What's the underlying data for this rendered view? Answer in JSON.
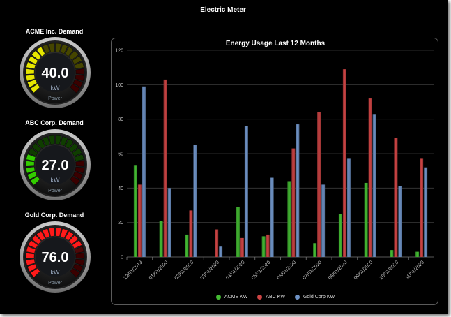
{
  "app": {
    "title": "Electric Meter"
  },
  "gauges": [
    {
      "title": "ACME Inc. Demand",
      "value": "40.0",
      "unit": "kW",
      "caption": "Power",
      "level": 0.4,
      "color": "#e6e600"
    },
    {
      "title": "ABC Corp. Demand",
      "value": "27.0",
      "unit": "kW",
      "caption": "Power",
      "level": 0.27,
      "color": "#33cc00"
    },
    {
      "title": "Gold Corp. Demand",
      "value": "76.0",
      "unit": "kW",
      "caption": "Power",
      "level": 0.76,
      "color": "#ff1a1a"
    }
  ],
  "chart_data": {
    "type": "bar",
    "title": "Energy Usage Last 12 Months",
    "xlabel": "",
    "ylabel": "",
    "ylim": [
      0,
      120
    ],
    "yticks": [
      0,
      20,
      40,
      60,
      80,
      100,
      120
    ],
    "grid": true,
    "legend_position": "bottom",
    "categories": [
      "12/01/2019",
      "01/01/2020",
      "02/01/2020",
      "03/01/2020",
      "04/01/2020",
      "05/01/2020",
      "06/01/2020",
      "07/01/2020",
      "08/01/2020",
      "09/01/2020",
      "10/01/2020",
      "11/01/2020"
    ],
    "series": [
      {
        "name": "ACME KW",
        "color": "#44bb33",
        "values": [
          53,
          21,
          13,
          0,
          29,
          12,
          44,
          8,
          25,
          43,
          4,
          3
        ]
      },
      {
        "name": "ABC KW",
        "color": "#cc4444",
        "values": [
          42,
          103,
          27,
          16,
          11,
          13,
          63,
          84,
          109,
          92,
          69,
          57
        ]
      },
      {
        "name": "Gold Corp KW",
        "color": "#6f93c6",
        "values": [
          99,
          40,
          65,
          6,
          76,
          46,
          77,
          42,
          57,
          83,
          41,
          52
        ]
      }
    ]
  }
}
